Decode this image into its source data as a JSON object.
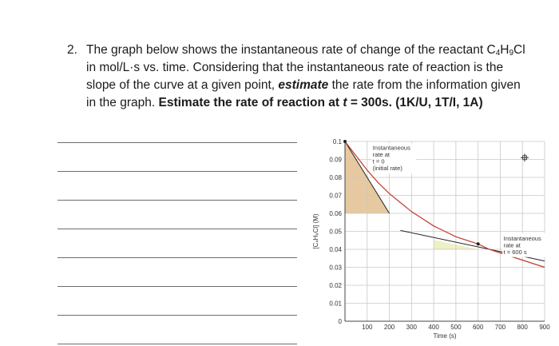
{
  "question": {
    "number": "2.",
    "line1_pre": "The graph below shows the instantaneous rate of change of the reactant C",
    "formula_sub1": "4",
    "formula_mid": "H",
    "formula_sub2": "9",
    "formula_end": "Cl",
    "line2": "in mol/L·s vs. time. Considering that the instantaneous rate of reaction is the",
    "line3_pre": "slope of the curve at a given point, ",
    "line3_bold": "estimate",
    "line3_post": " the rate from the information given",
    "line4_pre": "in the graph. ",
    "line4_bold": "Estimate",
    "line4_mid": " the rate of reaction at ",
    "line4_t": "t",
    "line4_post": " = 300s. (1K/U, 1T/I, 1A)"
  },
  "answer_lines_count": 8,
  "chart_data": {
    "type": "line",
    "title": "",
    "xlabel": "Time (s)",
    "ylabel": "[C₄H₉Cl] (M)",
    "xlim": [
      0,
      900
    ],
    "ylim": [
      0,
      0.1
    ],
    "x_ticks": [
      100,
      200,
      300,
      400,
      500,
      600,
      700,
      800,
      900
    ],
    "y_ticks": [
      "0.01",
      "0.02",
      "0.03",
      "0.04",
      "0.05",
      "0.06",
      "0.07",
      "0.08",
      "0.09",
      "0.1"
    ],
    "y_zero_label": "0",
    "grid": true,
    "series": [
      {
        "x": [
          0,
          50,
          100,
          150,
          200,
          250,
          300,
          350,
          400,
          450,
          500,
          550,
          600,
          650,
          700,
          750,
          800,
          850,
          900
        ],
        "values": [
          0.1,
          0.092,
          0.084,
          0.077,
          0.071,
          0.066,
          0.061,
          0.057,
          0.053,
          0.05,
          0.047,
          0.045,
          0.043,
          0.04,
          0.038,
          0.036,
          0.034,
          0.032,
          0.03
        ]
      }
    ],
    "tangents": [
      {
        "x": [
          0,
          200
        ],
        "values": [
          0.1,
          0.06
        ]
      },
      {
        "x": [
          250,
          900
        ],
        "values": [
          0.0505,
          0.0335
        ]
      }
    ],
    "triangles": [
      {
        "x": [
          0,
          0,
          200
        ],
        "values": [
          0.1,
          0.06,
          0.06
        ],
        "color": "#e6c9a0"
      },
      {
        "x": [
          400,
          400,
          600
        ],
        "values": [
          0.0452,
          0.04,
          0.04
        ],
        "color": "#eef0c6"
      }
    ],
    "annotations": [
      {
        "lines": [
          "Instantaneous",
          "rate at",
          "t = 0",
          "(initial rate)"
        ]
      },
      {
        "lines": [
          "Instantaneous",
          "rate at",
          "t = 600 s"
        ]
      }
    ],
    "colors": {
      "curve": "#c0392b",
      "tangent": "#222222",
      "grid": "#c8c8c8",
      "axes": "#444444"
    }
  }
}
